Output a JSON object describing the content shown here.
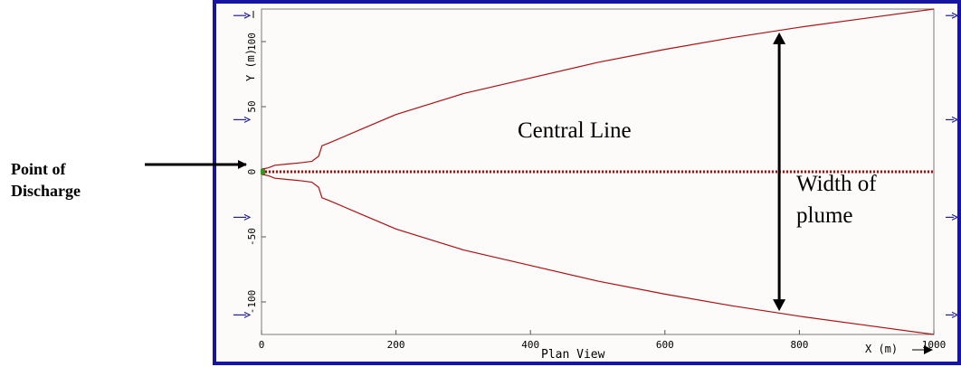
{
  "figure": {
    "plot_title": "Plan View",
    "x_axis_label": "X (m)",
    "y_axis_label": "Y (m)",
    "x_ticks": [
      "0",
      "200",
      "400",
      "600",
      "800",
      "1000"
    ],
    "y_ticks": [
      "100",
      "50",
      "0",
      "-50",
      "-100"
    ]
  },
  "annotations": {
    "point_of_discharge_line1": "Point of",
    "point_of_discharge_line2": "Discharge",
    "central_line": "Central Line",
    "width_line1": "Width of",
    "width_line2": "plume"
  },
  "colors": {
    "frame": "#1515a0",
    "plot_background": "#fdfafa",
    "plume_edge": "#b01010",
    "central_line": "#c00000",
    "ambient_arrows": "#1e1ea8",
    "annotation_arrows": "#000000"
  },
  "chart_data": {
    "type": "line",
    "x_range": [
      0,
      1000
    ],
    "y_range": [
      -125,
      125
    ],
    "series": [
      {
        "values_x": [
          0,
          10,
          20,
          40,
          60,
          75,
          85,
          90,
          100,
          150,
          200,
          300,
          400,
          500,
          600,
          700,
          800,
          900,
          1000
        ],
        "values_y": [
          2,
          3,
          5,
          6,
          7,
          8,
          12,
          20,
          22,
          33,
          44,
          60,
          72,
          84,
          94,
          103,
          111,
          118,
          125
        ]
      },
      {
        "values_x": [
          0,
          10,
          20,
          40,
          60,
          75,
          85,
          90,
          100,
          150,
          200,
          300,
          400,
          500,
          600,
          700,
          800,
          900,
          1000
        ],
        "values_y": [
          -2,
          -3,
          -5,
          -6,
          -7,
          -8,
          -12,
          -20,
          -22,
          -33,
          -44,
          -60,
          -72,
          -84,
          -94,
          -103,
          -111,
          -118,
          -125
        ]
      },
      {
        "values_x": [
          0,
          1000
        ],
        "values_y": [
          0,
          0
        ]
      }
    ],
    "ambient_flow_arrows_y": [
      120,
      40,
      -35,
      -110
    ],
    "width_arrow_x": 770,
    "width_arrow_y": [
      107,
      -107
    ]
  }
}
